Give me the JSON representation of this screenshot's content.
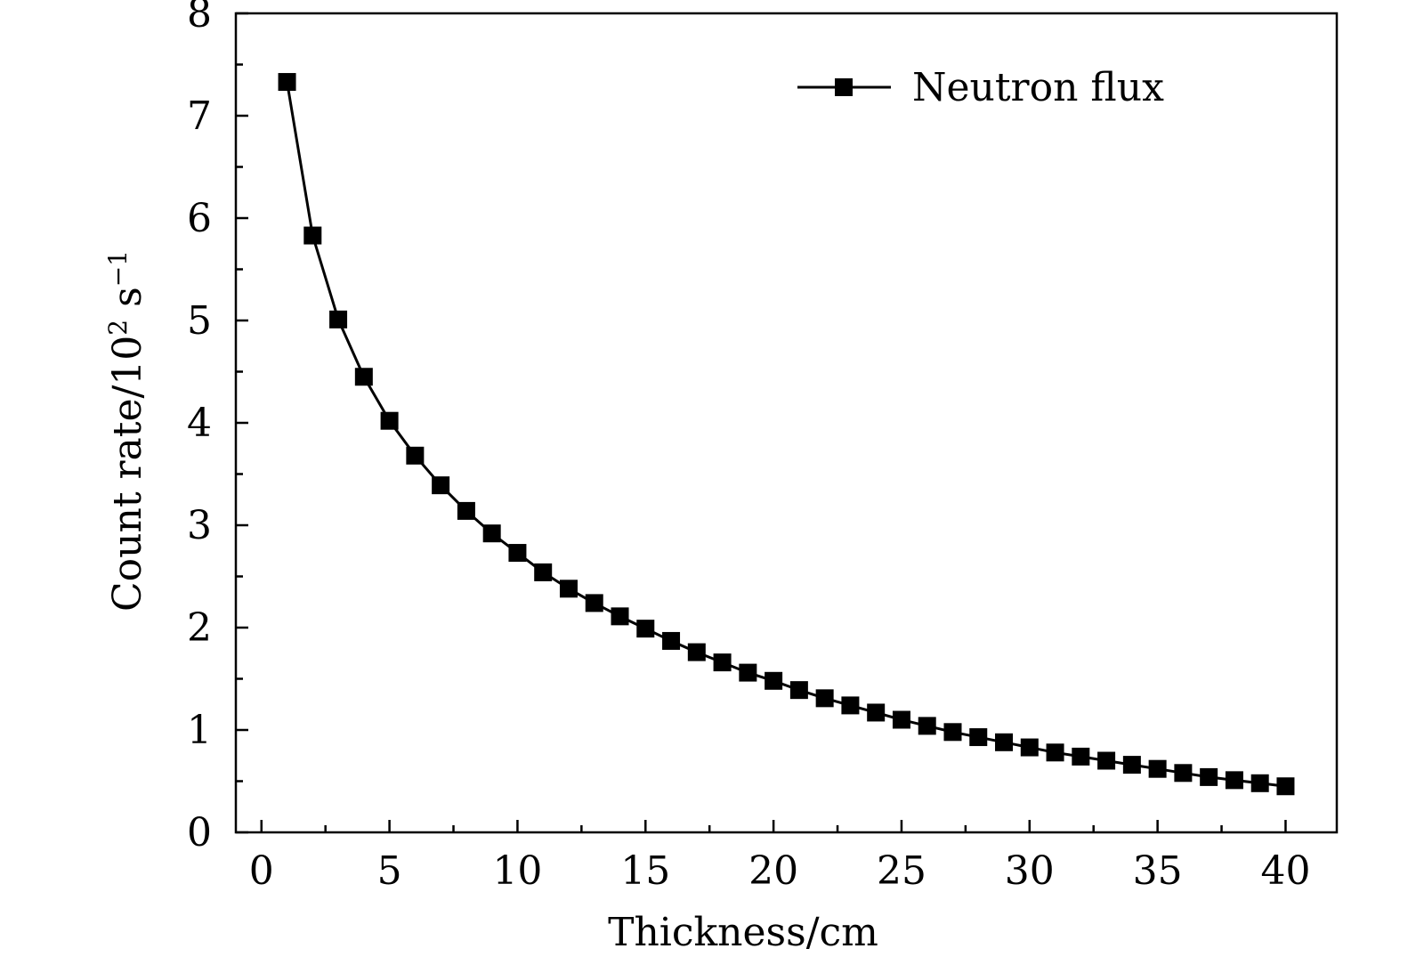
{
  "chart_data": {
    "type": "line",
    "title": "",
    "xlabel": "Thickness/cm",
    "ylabel_base": "Count rate/10",
    "ylabel_sup": "2",
    "ylabel_unit": " s",
    "ylabel_unit_sup": "−1",
    "xlim": [
      -1,
      42
    ],
    "ylim": [
      0,
      8
    ],
    "x_ticks": [
      0,
      5,
      10,
      15,
      20,
      25,
      30,
      35,
      40
    ],
    "x_tick_labels": [
      "0",
      "5",
      "10",
      "15",
      "20",
      "25",
      "30",
      "35",
      "40"
    ],
    "y_ticks": [
      0,
      1,
      2,
      3,
      4,
      5,
      6,
      7,
      8
    ],
    "y_tick_labels": [
      "0",
      "1",
      "2",
      "3",
      "4",
      "5",
      "6",
      "7",
      "8"
    ],
    "grid": false,
    "legend_position": "top-right",
    "marker": "square",
    "series": [
      {
        "name": "Neutron flux",
        "color": "#000000",
        "x": [
          1,
          2,
          3,
          4,
          5,
          6,
          7,
          8,
          9,
          10,
          11,
          12,
          13,
          14,
          15,
          16,
          17,
          18,
          19,
          20,
          21,
          22,
          23,
          24,
          25,
          26,
          27,
          28,
          29,
          30,
          31,
          32,
          33,
          34,
          35,
          36,
          37,
          38,
          39,
          40
        ],
        "y": [
          7.33,
          5.83,
          5.01,
          4.45,
          4.02,
          3.68,
          3.39,
          3.14,
          2.92,
          2.73,
          2.54,
          2.38,
          2.24,
          2.11,
          1.99,
          1.87,
          1.76,
          1.66,
          1.56,
          1.48,
          1.39,
          1.31,
          1.24,
          1.17,
          1.1,
          1.04,
          0.98,
          0.93,
          0.88,
          0.83,
          0.78,
          0.74,
          0.7,
          0.66,
          0.62,
          0.58,
          0.54,
          0.51,
          0.48,
          0.45
        ]
      }
    ]
  }
}
